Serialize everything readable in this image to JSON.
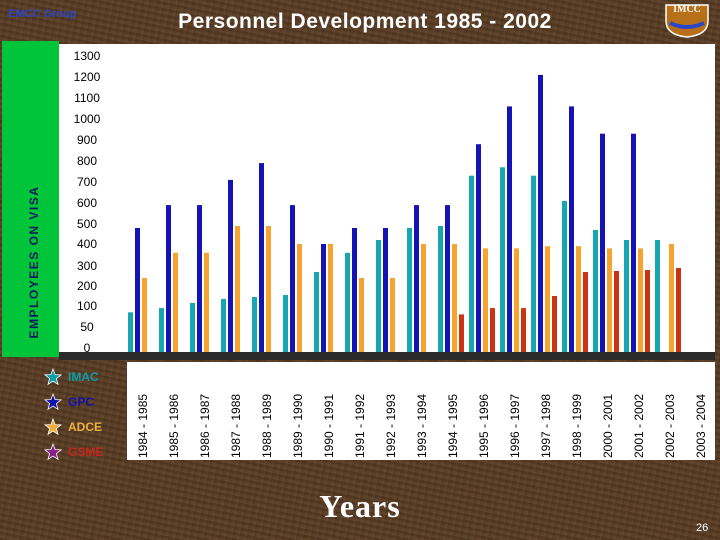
{
  "header": {
    "group_label": "EMCC Group",
    "title": "Personnel  Development  1985 - 2002",
    "logo_text": "IMCC"
  },
  "footer": {
    "page_number": "26"
  },
  "legend": [
    {
      "label": "IMAC",
      "color": "#0d9ea8",
      "star_color": "#0d9ea8"
    },
    {
      "label": "GPC",
      "color": "#1212a6",
      "star_color": "#1212a6"
    },
    {
      "label": "ADCE",
      "color": "#f0b040",
      "star_color": "#f0b040"
    },
    {
      "label": "GSME",
      "color": "#c4281c",
      "star_color": "#8a1f8a"
    }
  ],
  "chart_data": {
    "type": "bar",
    "ylabel": "EMPLOYEES ON VISA",
    "xlabel": "Years",
    "ylim": [
      0,
      1300
    ],
    "y_ticks": [
      "1300",
      "1200",
      "1100",
      "1000",
      "900",
      "800",
      "700",
      "600",
      "500",
      "400",
      "300",
      "200",
      "100",
      "50",
      "0"
    ],
    "categories": [
      "1984 - 1985",
      "1985 - 1986",
      "1986 - 1987",
      "1987 - 1988",
      "1988 - 1989",
      "1989 - 1990",
      "1990 - 1991",
      "1991 - 1992",
      "1992 - 1993",
      "1993 - 1994",
      "1994 - 1995",
      "1995 - 1996",
      "1996 - 1997",
      "1997 - 1998",
      "1998 - 1999",
      "2000 - 2001",
      "2001 - 2002",
      "2002 - 2003",
      "2003 - 2004"
    ],
    "series": [
      {
        "name": "IMAC",
        "color": "#17a7b2",
        "values": [
          85,
          95,
          115,
          135,
          145,
          155,
          270,
          360,
          420,
          480,
          490,
          730,
          770,
          730,
          610,
          470,
          420,
          420,
          0
        ]
      },
      {
        "name": "GPC",
        "color": "#1414b4",
        "values": [
          480,
          590,
          590,
          710,
          790,
          590,
          400,
          480,
          480,
          590,
          590,
          880,
          1060,
          1210,
          1060,
          930,
          930,
          0,
          0
        ]
      },
      {
        "name": "ADCE",
        "color": "#f7a330",
        "values": [
          240,
          360,
          360,
          490,
          490,
          400,
          400,
          240,
          240,
          400,
          400,
          380,
          380,
          390,
          390,
          380,
          380,
          400,
          0
        ]
      },
      {
        "name": "GSME",
        "color": "#cc3310",
        "values": [
          0,
          0,
          0,
          0,
          0,
          0,
          0,
          0,
          0,
          0,
          80,
          95,
          95,
          150,
          270,
          275,
          280,
          290,
          0
        ]
      }
    ]
  }
}
